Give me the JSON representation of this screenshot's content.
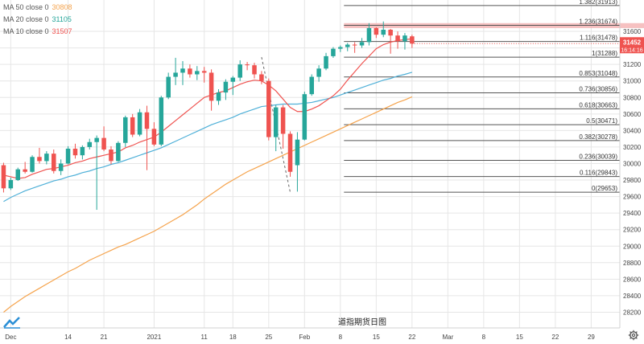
{
  "colors": {
    "up": "#26a69a",
    "down": "#ef5350",
    "ma10": "#ef5350",
    "ma20": "#4fb0d8",
    "ma50": "#f5a34c",
    "fib_line": "#555555",
    "fib_zone": "#f4b6b6",
    "grid": "#e6e6e6",
    "price_tag": "#ef5350"
  },
  "legend": [
    {
      "label": "MA 50 close 0",
      "value": "30808",
      "color": "#f5a34c"
    },
    {
      "label": "MA 20 close 0",
      "value": "31105",
      "color": "#26a69a"
    },
    {
      "label": "MA 10 close 0",
      "value": "31507",
      "color": "#ef5350"
    }
  ],
  "caption": "道指期货日图",
  "chart_data": {
    "type": "candlestick",
    "x_tick_labels": [
      {
        "label": "Dec",
        "i": 1
      },
      {
        "label": "14",
        "i": 9
      },
      {
        "label": "21",
        "i": 14
      },
      {
        "label": "2021",
        "i": 21
      },
      {
        "label": "11",
        "i": 28
      },
      {
        "label": "18",
        "i": 32
      },
      {
        "label": "25",
        "i": 37
      },
      {
        "label": "Feb",
        "i": 42
      },
      {
        "label": "8",
        "i": 47
      },
      {
        "label": "15",
        "i": 52
      },
      {
        "label": "22",
        "i": 57
      },
      {
        "label": "Mar",
        "i": 62
      },
      {
        "label": "8",
        "i": 67
      },
      {
        "label": "15",
        "i": 72
      },
      {
        "label": "22",
        "i": 77
      },
      {
        "label": "29",
        "i": 82
      }
    ],
    "x_range": [
      -0.5,
      86
    ],
    "y_range": [
      28010,
      31980
    ],
    "y_ticks": [
      28200,
      28400,
      28600,
      28800,
      29000,
      29200,
      29400,
      29600,
      29800,
      30000,
      30200,
      30400,
      30600,
      30800,
      31000,
      31200,
      31400,
      31600
    ],
    "candles": [
      {
        "o": 29980,
        "h": 30010,
        "l": 29650,
        "c": 29700
      },
      {
        "o": 29700,
        "h": 29830,
        "l": 29680,
        "c": 29800
      },
      {
        "o": 29800,
        "h": 29950,
        "l": 29790,
        "c": 29930
      },
      {
        "o": 29930,
        "h": 30020,
        "l": 29880,
        "c": 29900
      },
      {
        "o": 29900,
        "h": 30100,
        "l": 29890,
        "c": 30080
      },
      {
        "o": 30080,
        "h": 30190,
        "l": 30000,
        "c": 30030
      },
      {
        "o": 30030,
        "h": 30150,
        "l": 29990,
        "c": 30120
      },
      {
        "o": 30120,
        "h": 30170,
        "l": 29880,
        "c": 29910
      },
      {
        "o": 29910,
        "h": 30050,
        "l": 29860,
        "c": 30000
      },
      {
        "o": 30000,
        "h": 30210,
        "l": 29990,
        "c": 30180
      },
      {
        "o": 30180,
        "h": 30240,
        "l": 30060,
        "c": 30100
      },
      {
        "o": 30100,
        "h": 30220,
        "l": 30050,
        "c": 30200
      },
      {
        "o": 30200,
        "h": 30300,
        "l": 30170,
        "c": 30260
      },
      {
        "o": 30260,
        "h": 30340,
        "l": 29440,
        "c": 30310
      },
      {
        "o": 30310,
        "h": 30450,
        "l": 30150,
        "c": 30170
      },
      {
        "o": 30170,
        "h": 30210,
        "l": 29990,
        "c": 30030
      },
      {
        "o": 30030,
        "h": 30270,
        "l": 30020,
        "c": 30250
      },
      {
        "o": 30250,
        "h": 30580,
        "l": 30200,
        "c": 30560
      },
      {
        "o": 30560,
        "h": 30600,
        "l": 30320,
        "c": 30350
      },
      {
        "o": 30350,
        "h": 30660,
        "l": 30330,
        "c": 30620
      },
      {
        "o": 30620,
        "h": 30700,
        "l": 29920,
        "c": 30420
      },
      {
        "o": 30420,
        "h": 30500,
        "l": 30210,
        "c": 30230
      },
      {
        "o": 30230,
        "h": 30820,
        "l": 30210,
        "c": 30800
      },
      {
        "o": 30800,
        "h": 31100,
        "l": 30780,
        "c": 31050
      },
      {
        "o": 31050,
        "h": 31280,
        "l": 30950,
        "c": 31100
      },
      {
        "o": 31100,
        "h": 31240,
        "l": 30950,
        "c": 31150
      },
      {
        "o": 31150,
        "h": 31200,
        "l": 31040,
        "c": 31080
      },
      {
        "o": 31080,
        "h": 31180,
        "l": 31010,
        "c": 31120
      },
      {
        "o": 31120,
        "h": 31170,
        "l": 30980,
        "c": 31100
      },
      {
        "o": 31100,
        "h": 31140,
        "l": 30640,
        "c": 30760
      },
      {
        "o": 30760,
        "h": 30900,
        "l": 30710,
        "c": 30860
      },
      {
        "o": 30860,
        "h": 31020,
        "l": 30770,
        "c": 30990
      },
      {
        "o": 30990,
        "h": 31060,
        "l": 30830,
        "c": 31040
      },
      {
        "o": 31040,
        "h": 31250,
        "l": 31000,
        "c": 31200
      },
      {
        "o": 31200,
        "h": 31230,
        "l": 31130,
        "c": 31190
      },
      {
        "o": 31190,
        "h": 31220,
        "l": 31030,
        "c": 31080
      },
      {
        "o": 31080,
        "h": 31120,
        "l": 30960,
        "c": 31000
      },
      {
        "o": 31000,
        "h": 31030,
        "l": 30280,
        "c": 30320
      },
      {
        "o": 30320,
        "h": 30710,
        "l": 30150,
        "c": 30680
      },
      {
        "o": 30680,
        "h": 30710,
        "l": 30180,
        "c": 30360
      },
      {
        "o": 30360,
        "h": 30390,
        "l": 29840,
        "c": 29900
      },
      {
        "o": 29980,
        "h": 30380,
        "l": 29660,
        "c": 30290
      },
      {
        "o": 30290,
        "h": 30870,
        "l": 30280,
        "c": 30840
      },
      {
        "o": 30840,
        "h": 31080,
        "l": 30820,
        "c": 31050
      },
      {
        "o": 31050,
        "h": 31190,
        "l": 30990,
        "c": 31150
      },
      {
        "o": 31150,
        "h": 31340,
        "l": 31130,
        "c": 31300
      },
      {
        "o": 31300,
        "h": 31410,
        "l": 31280,
        "c": 31390
      },
      {
        "o": 31390,
        "h": 31430,
        "l": 31350,
        "c": 31410
      },
      {
        "o": 31410,
        "h": 31460,
        "l": 31360,
        "c": 31440
      },
      {
        "o": 31440,
        "h": 31470,
        "l": 31340,
        "c": 31430
      },
      {
        "o": 31430,
        "h": 31520,
        "l": 31400,
        "c": 31470
      },
      {
        "o": 31470,
        "h": 31700,
        "l": 31430,
        "c": 31640
      },
      {
        "o": 31640,
        "h": 31650,
        "l": 31520,
        "c": 31560
      },
      {
        "o": 31560,
        "h": 31720,
        "l": 31530,
        "c": 31620
      },
      {
        "o": 31620,
        "h": 31630,
        "l": 31330,
        "c": 31550
      },
      {
        "o": 31550,
        "h": 31600,
        "l": 31390,
        "c": 31480
      },
      {
        "o": 31480,
        "h": 31580,
        "l": 31380,
        "c": 31550
      },
      {
        "o": 31540,
        "h": 31560,
        "l": 31400,
        "c": 31452
      }
    ],
    "ma10": [
      29860,
      29840,
      29820,
      29830,
      29870,
      29900,
      29930,
      29940,
      29960,
      29980,
      30010,
      30030,
      30060,
      30080,
      30100,
      30120,
      30140,
      30190,
      30220,
      30260,
      30290,
      30320,
      30380,
      30450,
      30520,
      30590,
      30660,
      30730,
      30800,
      30830,
      30860,
      30880,
      30920,
      30960,
      30990,
      31010,
      31000,
      30950,
      30880,
      30780,
      30680,
      30630,
      30630,
      30660,
      30700,
      30760,
      30820,
      30900,
      31010,
      31110,
      31210,
      31300,
      31390,
      31440,
      31470,
      31490,
      31500,
      31510
    ],
    "ma20": [
      29540,
      29590,
      29630,
      29670,
      29700,
      29730,
      29760,
      29790,
      29810,
      29840,
      29860,
      29890,
      29910,
      29940,
      29960,
      29990,
      30010,
      30040,
      30070,
      30100,
      30130,
      30160,
      30190,
      30230,
      30270,
      30310,
      30350,
      30390,
      30430,
      30470,
      30500,
      30530,
      30560,
      30600,
      30630,
      30660,
      30690,
      30700,
      30710,
      30720,
      30720,
      30720,
      30730,
      30740,
      30760,
      30780,
      30800,
      30830,
      30860,
      30890,
      30920,
      30950,
      30980,
      31010,
      31030,
      31060,
      31080,
      31105
    ],
    "ma50": [
      28200,
      28270,
      28330,
      28390,
      28440,
      28490,
      28540,
      28590,
      28640,
      28690,
      28730,
      28780,
      28830,
      28870,
      28910,
      28950,
      28990,
      29020,
      29060,
      29100,
      29140,
      29180,
      29230,
      29280,
      29330,
      29380,
      29440,
      29500,
      29570,
      29630,
      29690,
      29750,
      29800,
      29850,
      29900,
      29940,
      29980,
      30020,
      30060,
      30100,
      30140,
      30180,
      30220,
      30260,
      30300,
      30340,
      30380,
      30420,
      30460,
      30500,
      30540,
      30580,
      30620,
      30660,
      30700,
      30740,
      30770,
      30808
    ],
    "fib_levels": [
      {
        "ratio": "0",
        "price": 29653
      },
      {
        "ratio": "0.116",
        "price": 29843
      },
      {
        "ratio": "0.236",
        "price": 30039
      },
      {
        "ratio": "0.382",
        "price": 30278
      },
      {
        "ratio": "0.5",
        "price": 30471
      },
      {
        "ratio": "0.618",
        "price": 30663
      },
      {
        "ratio": "0.736",
        "price": 30856
      },
      {
        "ratio": "0.853",
        "price": 31048
      },
      {
        "ratio": "1",
        "price": 31288
      },
      {
        "ratio": "1.116",
        "price": 31478
      },
      {
        "ratio": "1.236",
        "price": 31674
      },
      {
        "ratio": "1.382",
        "price": 31913
      }
    ],
    "fib_line_x_range": [
      47.5,
      110
    ],
    "fib_zone": {
      "from_price": 31640,
      "to_price": 31700,
      "x_range": [
        47.5,
        110
      ]
    },
    "fib_trend_points": [
      {
        "i": 36,
        "price": 31288
      },
      {
        "i": 40,
        "price": 29653
      }
    ],
    "last_price": "31452",
    "countdown": "16:14:16"
  }
}
